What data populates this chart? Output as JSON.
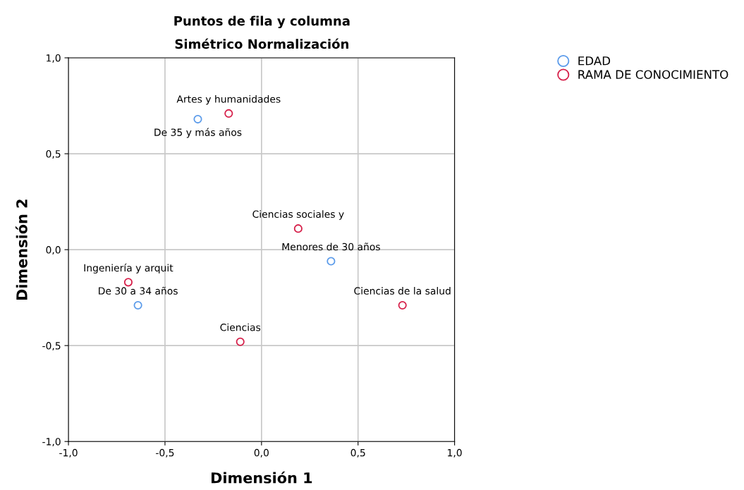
{
  "chart_data": {
    "type": "scatter",
    "title": "Puntos de fila y columna",
    "subtitle": "Simétrico Normalización",
    "xlabel": "Dimensión 1",
    "ylabel": "Dimensión 2",
    "series": [
      {
        "name": "EDAD",
        "color": "#5b9bea",
        "x": [
          -0.33,
          0.36,
          -0.64
        ],
        "values": [
          0.68,
          -0.06,
          -0.29
        ],
        "value_labels": [
          "De 35 y más años",
          "Menores de 30 años",
          "De 30 a 34 años"
        ]
      },
      {
        "name": "RAMA DE CONOCIMIENTO",
        "color": "#d6204a",
        "x": [
          -0.17,
          0.19,
          -0.69,
          0.73,
          -0.11
        ],
        "values": [
          0.71,
          0.11,
          -0.17,
          -0.29,
          -0.48
        ],
        "value_labels": [
          "Artes y humanidades",
          "Ciencias sociales y",
          "Ingeniería y arquit",
          "Ciencias de la salud",
          "Ciencias"
        ]
      }
    ],
    "xlim": [
      -1,
      1
    ],
    "ylim": [
      -1,
      1
    ],
    "xticks": [
      {
        "value": -1,
        "label": "-1,0"
      },
      {
        "value": -0.5,
        "label": "-0,5"
      },
      {
        "value": 0,
        "label": "0,0"
      },
      {
        "value": 0.5,
        "label": "0,5"
      },
      {
        "value": 1,
        "label": "1,0"
      }
    ],
    "yticks": [
      {
        "value": -1,
        "label": "-1,0"
      },
      {
        "value": -0.5,
        "label": "-0,5"
      },
      {
        "value": 0,
        "label": "0,0"
      },
      {
        "value": 0.5,
        "label": "0,5"
      },
      {
        "value": 1,
        "label": "1,0"
      }
    ],
    "grid": true,
    "legend": "top right",
    "marker": "circle"
  }
}
